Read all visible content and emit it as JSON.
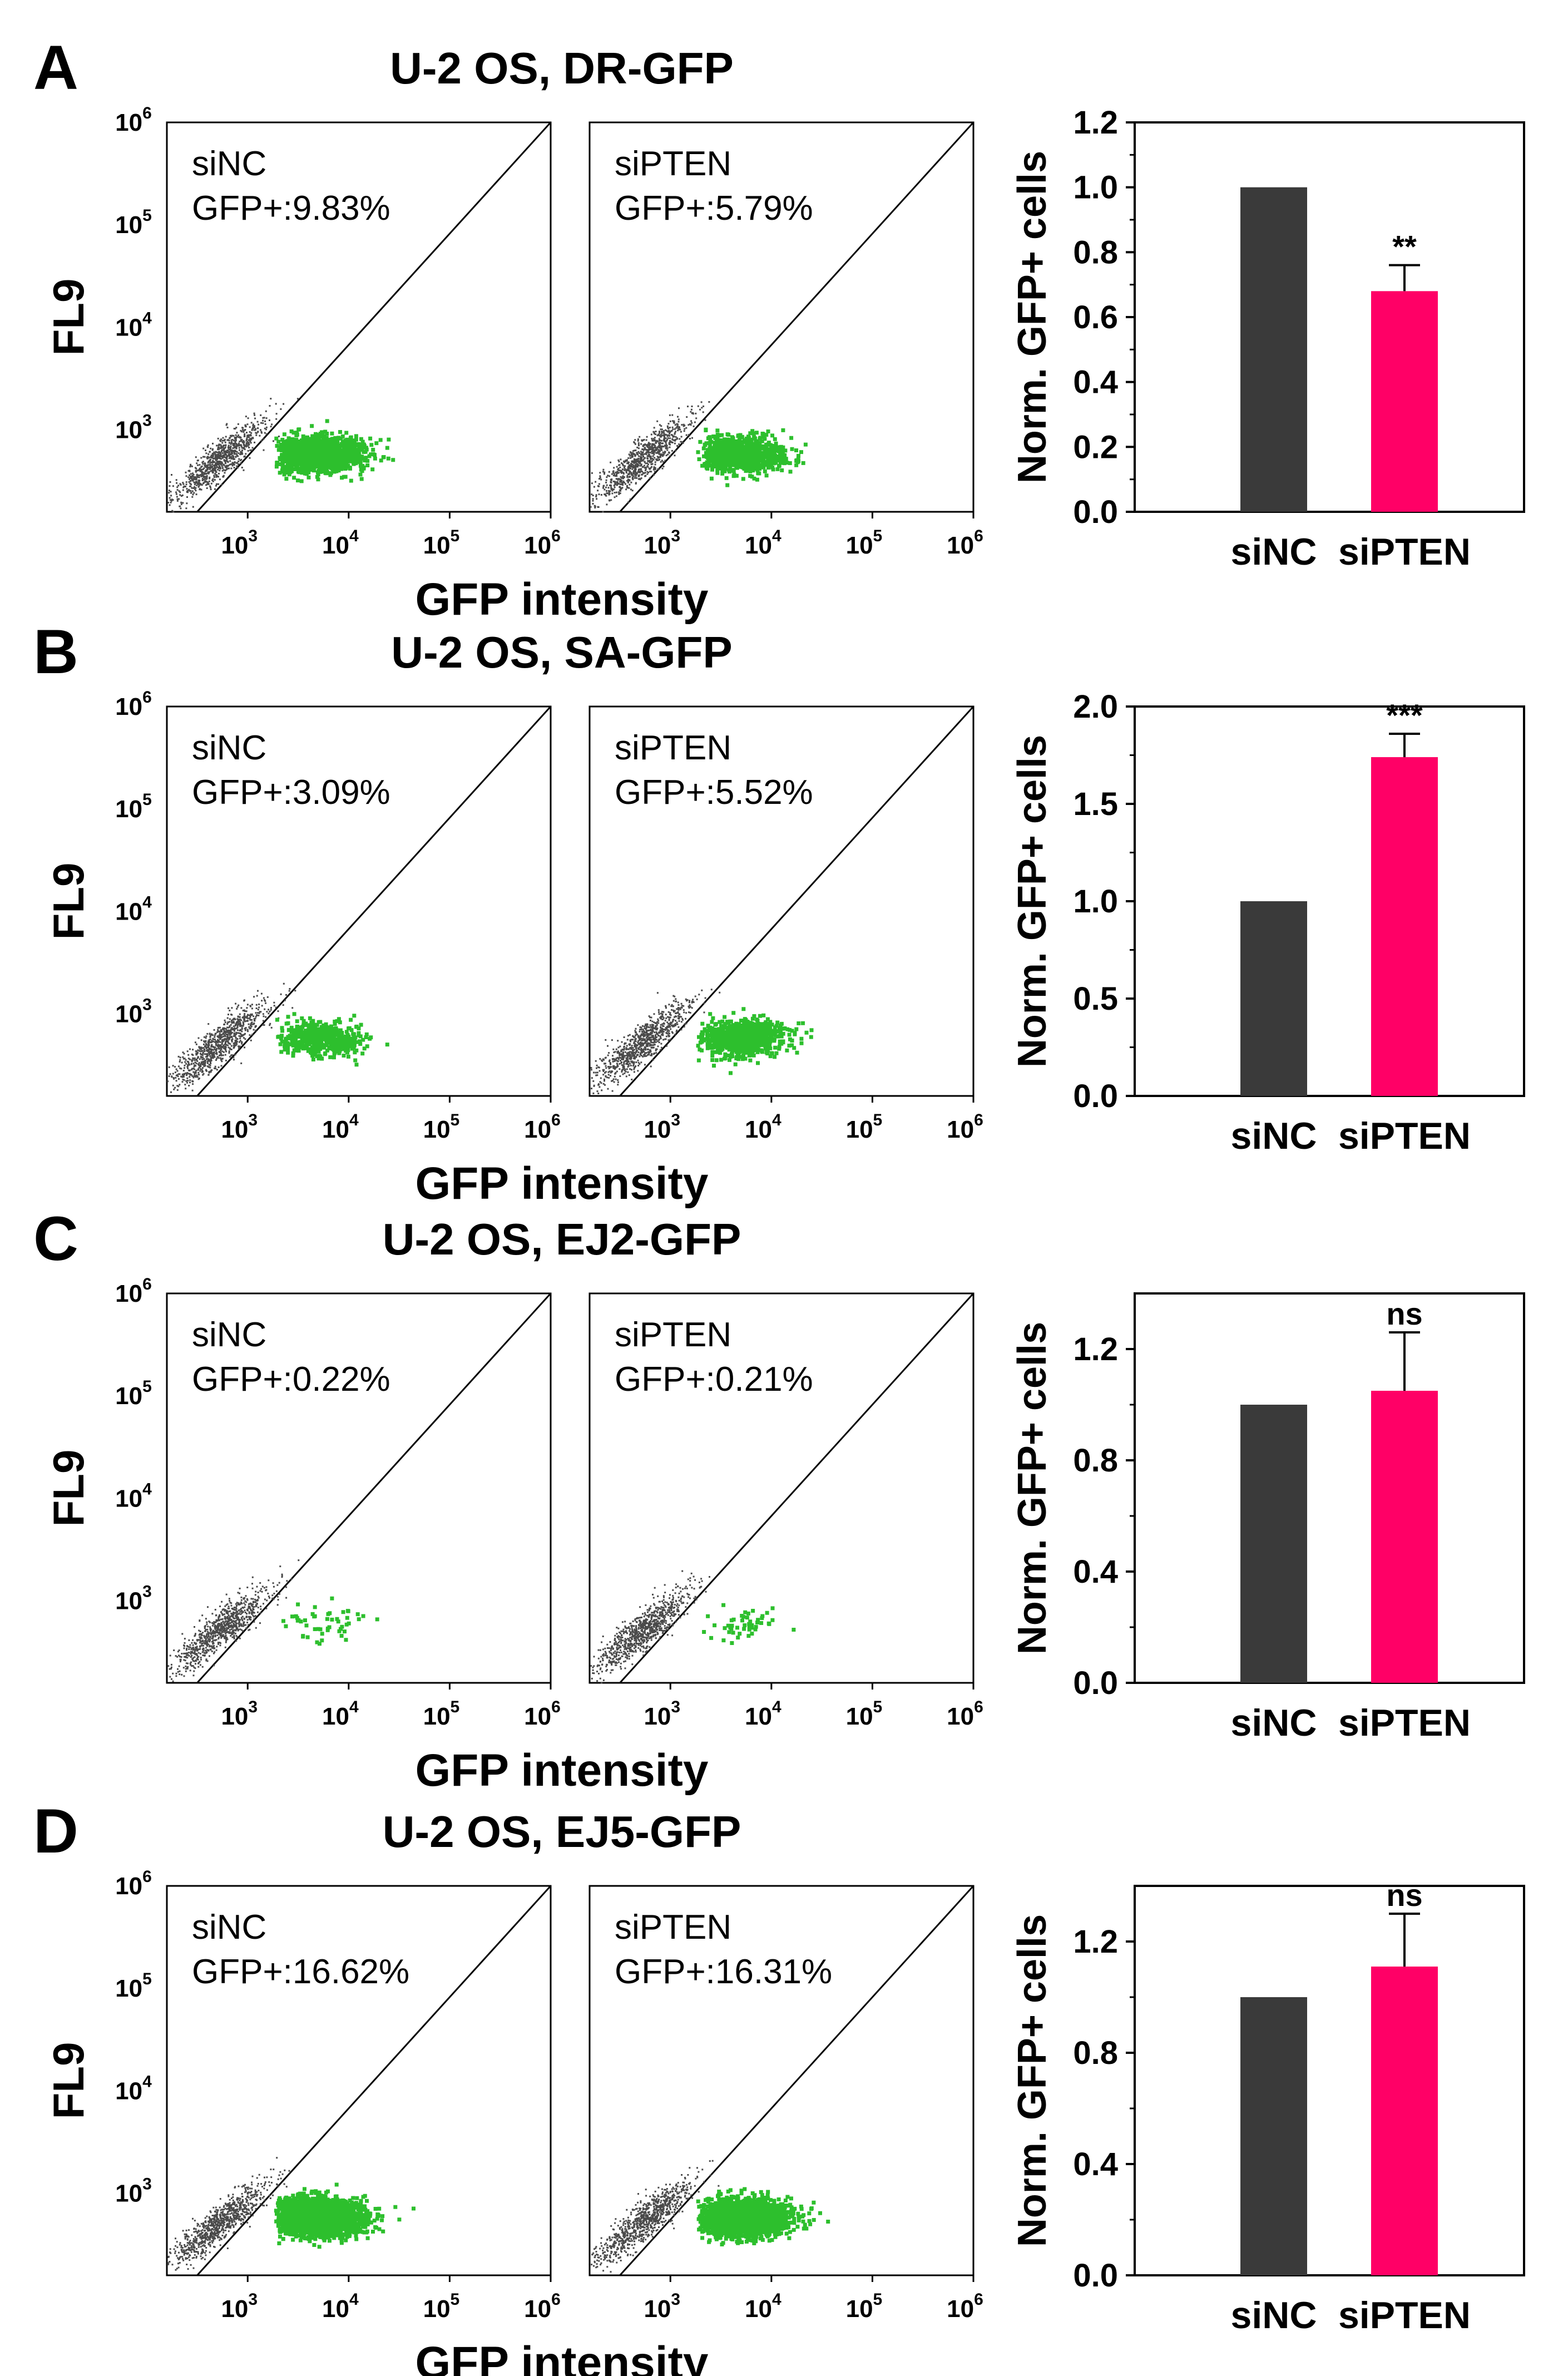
{
  "figure": {
    "panels": [
      {
        "letter": "A",
        "title": "U-2 OS, DR-GFP",
        "flow": [
          {
            "condition": "siNC",
            "gfp_label": "GFP+:9.83%",
            "gfp_percent": 9.83
          },
          {
            "condition": "siPTEN",
            "gfp_label": "GFP+:5.79%",
            "gfp_percent": 5.79
          }
        ]
      },
      {
        "letter": "B",
        "title": "U-2 OS, SA-GFP",
        "flow": [
          {
            "condition": "siNC",
            "gfp_label": "GFP+:3.09%",
            "gfp_percent": 3.09
          },
          {
            "condition": "siPTEN",
            "gfp_label": "GFP+:5.52%",
            "gfp_percent": 5.52
          }
        ]
      },
      {
        "letter": "C",
        "title": "U-2 OS, EJ2-GFP",
        "flow": [
          {
            "condition": "siNC",
            "gfp_label": "GFP+:0.22%",
            "gfp_percent": 0.22
          },
          {
            "condition": "siPTEN",
            "gfp_label": "GFP+:0.21%",
            "gfp_percent": 0.21
          }
        ]
      },
      {
        "letter": "D",
        "title": "U-2 OS, EJ5-GFP",
        "flow": [
          {
            "condition": "siNC",
            "gfp_label": "GFP+:16.62%",
            "gfp_percent": 16.62
          },
          {
            "condition": "siPTEN",
            "gfp_label": "GFP+:16.31%",
            "gfp_percent": 16.31
          }
        ]
      }
    ],
    "flow_axes": {
      "x_label": "GFP intensity",
      "y_label": "FL9",
      "x_ticks": [
        {
          "base": "10",
          "exp": "3"
        },
        {
          "base": "10",
          "exp": "4"
        },
        {
          "base": "10",
          "exp": "5"
        },
        {
          "base": "10",
          "exp": "6"
        }
      ],
      "y_ticks": [
        {
          "base": "10",
          "exp": "6"
        },
        {
          "base": "10",
          "exp": "5"
        },
        {
          "base": "10",
          "exp": "4"
        },
        {
          "base": "10",
          "exp": "3"
        }
      ]
    },
    "colors": {
      "sinc_bar": "#3a3a3a",
      "sipten_bar": "#ff0066",
      "gfp_positive_dots": "#2dbf2d",
      "gfp_negative_dots": "#4a4a4a",
      "ink": "#000000"
    }
  },
  "chart_data": [
    {
      "panel": "A",
      "type": "bar",
      "title": "U-2 OS, DR-GFP",
      "categories": [
        "siNC",
        "siPTEN"
      ],
      "values": [
        1.0,
        0.68
      ],
      "errors": [
        0,
        0.08
      ],
      "significance": "**",
      "ylabel": "Norm. GFP+ cells",
      "ylim": [
        0,
        1.2
      ],
      "yticks": [
        0.0,
        0.2,
        0.4,
        0.6,
        0.8,
        1.0,
        1.2
      ],
      "ytick_labels": [
        "0.0",
        "0.2",
        "0.4",
        "0.6",
        "0.8",
        "1.0",
        "1.2"
      ]
    },
    {
      "panel": "B",
      "type": "bar",
      "title": "U-2 OS, SA-GFP",
      "categories": [
        "siNC",
        "siPTEN"
      ],
      "values": [
        1.0,
        1.74
      ],
      "errors": [
        0,
        0.12
      ],
      "significance": "***",
      "ylabel": "Norm. GFP+ cells",
      "ylim": [
        0,
        2.0
      ],
      "yticks": [
        0.0,
        0.5,
        1.0,
        1.5,
        2.0
      ],
      "ytick_labels": [
        "0.0",
        "0.5",
        "1.0",
        "1.5",
        "2.0"
      ]
    },
    {
      "panel": "C",
      "type": "bar",
      "title": "U-2 OS, EJ2-GFP",
      "categories": [
        "siNC",
        "siPTEN"
      ],
      "values": [
        1.0,
        1.05
      ],
      "errors": [
        0,
        0.21
      ],
      "significance": "ns",
      "ylabel": "Norm. GFP+ cells",
      "ylim": [
        0,
        1.4
      ],
      "yticks": [
        0.0,
        0.4,
        0.8,
        1.2
      ],
      "ytick_labels": [
        "0.0",
        "0.4",
        "0.8",
        "1.2"
      ]
    },
    {
      "panel": "D",
      "type": "bar",
      "title": "U-2 OS, EJ5-GFP",
      "categories": [
        "siNC",
        "siPTEN"
      ],
      "values": [
        1.0,
        1.11
      ],
      "errors": [
        0,
        0.19
      ],
      "significance": "ns",
      "ylabel": "Norm. GFP+ cells",
      "ylim": [
        0,
        1.4
      ],
      "yticks": [
        0.0,
        0.4,
        0.8,
        1.2
      ],
      "ytick_labels": [
        "0.0",
        "0.4",
        "0.8",
        "1.2"
      ]
    }
  ]
}
